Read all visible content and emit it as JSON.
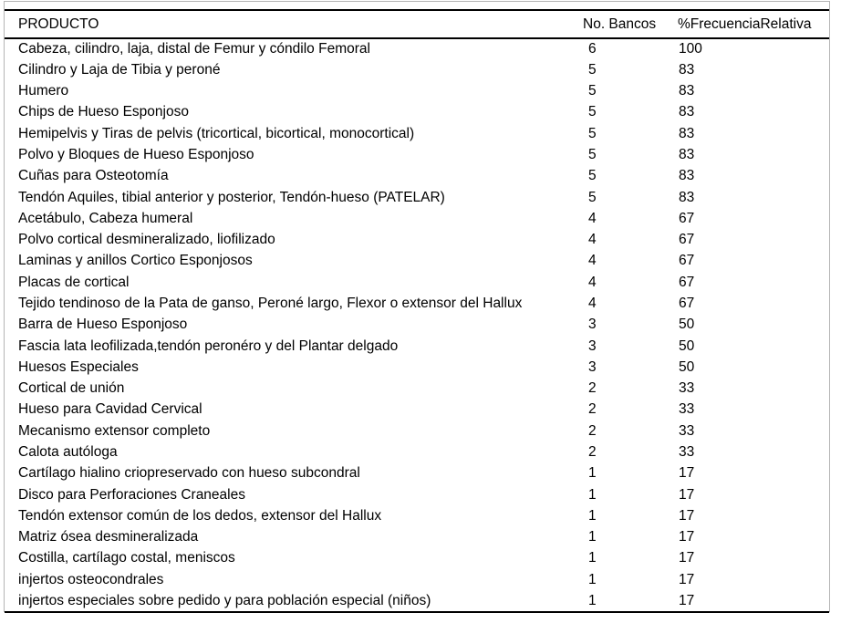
{
  "table": {
    "columns": {
      "producto": "PRODUCTO",
      "bancos": "No. Bancos",
      "frecuencia": "%FrecuenciaRelativa"
    },
    "rows": [
      [
        "Cabeza, cilindro, laja, distal de Femur y cóndilo Femoral",
        "6",
        "100"
      ],
      [
        "Cilindro y Laja de Tibia y peroné",
        "5",
        "83"
      ],
      [
        "Humero",
        "5",
        "83"
      ],
      [
        "Chips de Hueso Esponjoso",
        "5",
        "83"
      ],
      [
        "Hemipelvis y Tiras de pelvis (tricortical, bicortical, monocortical)",
        "5",
        "83"
      ],
      [
        "Polvo y Bloques de Hueso Esponjoso",
        "5",
        "83"
      ],
      [
        "Cuñas para Osteotomía",
        "5",
        "83"
      ],
      [
        "Tendón Aquiles, tibial anterior y posterior, Tendón-hueso (PATELAR)",
        "5",
        "83"
      ],
      [
        "Acetábulo, Cabeza humeral",
        "4",
        "67"
      ],
      [
        "Polvo cortical desmineralizado, liofilizado",
        "4",
        "67"
      ],
      [
        "Laminas y anillos Cortico Esponjosos",
        "4",
        "67"
      ],
      [
        "Placas de cortical",
        "4",
        "67"
      ],
      [
        "Tejido tendinoso de la Pata de ganso, Peroné largo, Flexor o extensor del Hallux",
        "4",
        "67"
      ],
      [
        "Barra de Hueso Esponjoso",
        "3",
        "50"
      ],
      [
        "Fascia lata leofilizada,tendón peronéro y del Plantar delgado",
        "3",
        "50"
      ],
      [
        "Huesos Especiales",
        "3",
        "50"
      ],
      [
        "Cortical de unión",
        "2",
        "33"
      ],
      [
        "Hueso para Cavidad Cervical",
        "2",
        "33"
      ],
      [
        "Mecanismo extensor completo",
        "2",
        "33"
      ],
      [
        "Calota autóloga",
        "2",
        "33"
      ],
      [
        "Cartílago hialino criopreservado con hueso subcondral",
        "1",
        "17"
      ],
      [
        "Disco para Perforaciones Craneales",
        "1",
        "17"
      ],
      [
        "Tendón extensor común de los dedos, extensor del Hallux",
        "1",
        "17"
      ],
      [
        "Matriz ósea desmineralizada",
        "1",
        "17"
      ],
      [
        "Costilla, cartílago costal, meniscos",
        "1",
        "17"
      ],
      [
        "injertos osteocondrales",
        "1",
        "17"
      ],
      [
        "injertos especiales sobre pedido y para población especial (niños)",
        "1",
        "17"
      ]
    ],
    "colors": {
      "rule": "#000000",
      "outer_border": "#b5b5b5",
      "text": "#000000",
      "background": "#ffffff"
    }
  }
}
